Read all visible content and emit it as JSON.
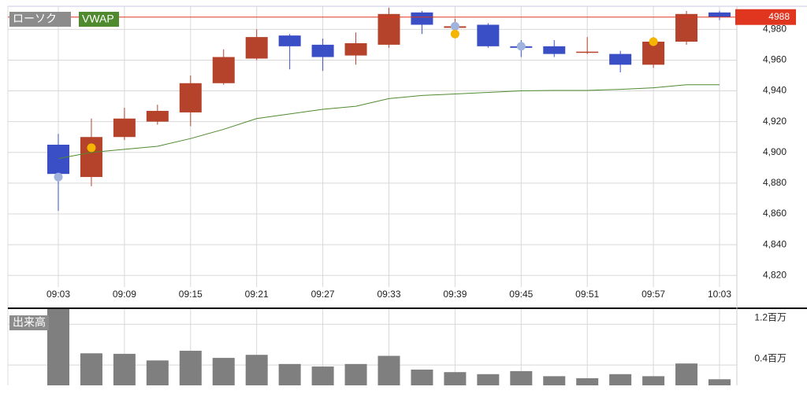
{
  "chart_data": {
    "type": "candlestick",
    "candle_name": "ローソク",
    "categories": [
      "09:03",
      null,
      "09:09",
      null,
      "09:15",
      null,
      "09:21",
      null,
      "09:27",
      null,
      "09:33",
      null,
      "09:39",
      null,
      "09:45",
      null,
      "09:51",
      null,
      "09:57",
      null,
      "10:03"
    ],
    "open": [
      4905,
      4884,
      4910,
      4920,
      4926,
      4945,
      4961,
      4976,
      4970,
      4963,
      4970,
      4991,
      4981,
      4983,
      4969,
      4969,
      4965,
      4964,
      4957,
      4972,
      4991
    ],
    "close": [
      4886,
      4910,
      4922,
      4927,
      4945,
      4962,
      4975,
      4969,
      4962,
      4971,
      4990,
      4983,
      4982,
      4969,
      4968,
      4964,
      4965.5,
      4957,
      4972,
      4990,
      4988
    ],
    "high": [
      4912,
      4922,
      4929,
      4931,
      4950,
      4967,
      4980,
      4977,
      4974,
      4978,
      4994,
      4992,
      4987,
      4984,
      4973,
      4973,
      4975,
      4966,
      4975,
      4992,
      4992
    ],
    "low": [
      4862,
      4878,
      4908,
      4918,
      4917,
      4944,
      4960,
      4954,
      4953,
      4957,
      4968,
      4977,
      4976,
      4968,
      4962,
      4962,
      4964,
      4952,
      4955,
      4970,
      4986
    ],
    "up_color": "#b5432b",
    "down_color": "#3a4fc6",
    "vwap": {
      "name": "VWAP",
      "color": "#4f8a2e",
      "values": [
        4896,
        4900,
        4902,
        4904,
        4909,
        4915,
        4922,
        4925,
        4928,
        4930,
        4935,
        4937,
        4938,
        4939,
        4940,
        4940.3,
        4940.3,
        4941,
        4942,
        4944,
        4944
      ]
    },
    "markers": [
      {
        "color": "#9fb3dc",
        "values": [
          4884,
          null,
          null,
          null,
          null,
          null,
          null,
          null,
          null,
          null,
          null,
          null,
          4982,
          null,
          4969,
          null,
          null,
          null,
          null,
          null,
          null
        ]
      },
      {
        "color": "#f5b400",
        "values": [
          null,
          4903,
          null,
          null,
          null,
          null,
          null,
          null,
          null,
          null,
          null,
          null,
          4977,
          null,
          null,
          null,
          null,
          null,
          4972,
          null,
          null
        ]
      }
    ],
    "last_price": 4988,
    "last_price_color": "#e0351e",
    "ylim": [
      4815,
      4995
    ],
    "yticks": [
      {
        "value": 4820,
        "label": "4,820"
      },
      {
        "value": 4840,
        "label": "4,840"
      },
      {
        "value": 4860,
        "label": "4,860"
      },
      {
        "value": 4880,
        "label": "4,880"
      },
      {
        "value": 4900,
        "label": "4,900"
      },
      {
        "value": 4920,
        "label": "4,920"
      },
      {
        "value": 4940,
        "label": "4,940"
      },
      {
        "value": 4960,
        "label": "4,960"
      },
      {
        "value": 4980,
        "label": "4,980"
      }
    ],
    "volume": {
      "name": "出来高",
      "color": "#7f7f7f",
      "values": [
        1.5,
        0.63,
        0.62,
        0.49,
        0.68,
        0.54,
        0.6,
        0.42,
        0.37,
        0.42,
        0.58,
        0.31,
        0.26,
        0.22,
        0.28,
        0.18,
        0.14,
        0.22,
        0.18,
        0.43,
        0.12
      ],
      "ylim": [
        0,
        1.5
      ],
      "yticks": [
        {
          "value": 0.4,
          "label": "0.4百万"
        },
        {
          "value": 1.2,
          "label": "1.2百万"
        }
      ]
    }
  }
}
